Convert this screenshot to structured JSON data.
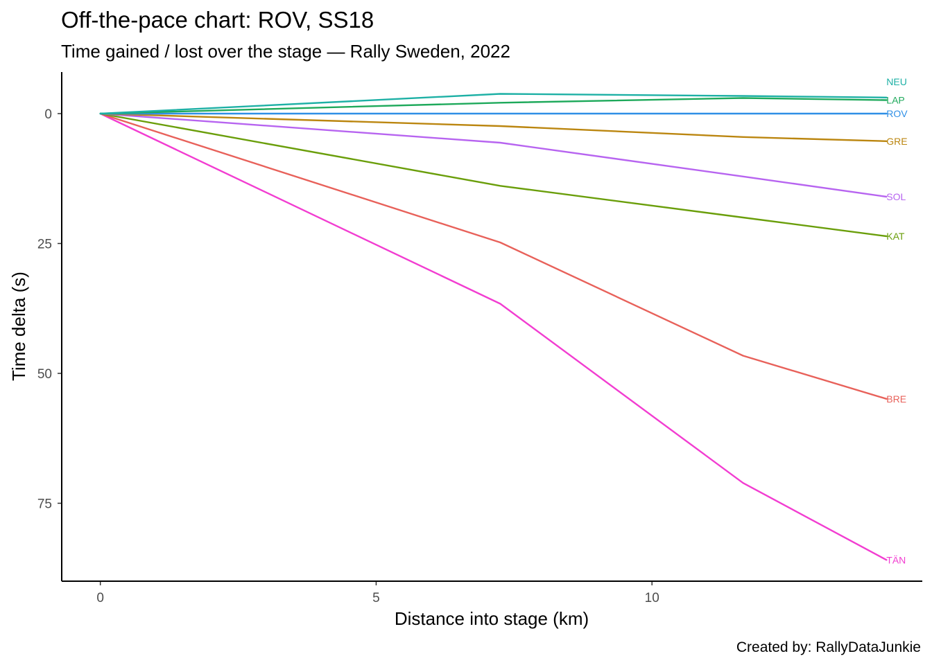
{
  "chart_data": {
    "type": "line",
    "title": "Off-the-pace chart: ROV, SS18",
    "subtitle": "Time gained / lost over the stage — Rally Sweden, 2022",
    "xlabel": "Distance into stage (km)",
    "ylabel": "Time delta (s)",
    "caption": "Created by: RallyDataJunkie",
    "y_reversed": true,
    "xlim": [
      -0.7,
      14.9
    ],
    "ylim": [
      -8,
      90
    ],
    "x_ticks": [
      0,
      5,
      10
    ],
    "x_tick_labels": [
      "0",
      "5",
      "10"
    ],
    "y_ticks": [
      0,
      25,
      50,
      75
    ],
    "y_tick_labels": [
      "0",
      "25",
      "50",
      "75"
    ],
    "x": [
      0,
      7.25,
      11.65,
      14.25
    ],
    "grid": false,
    "legend": "none",
    "series": [
      {
        "name": "NEU",
        "color": "#1db0a5",
        "values": [
          0,
          -3.8,
          -3.4,
          -3.1
        ]
      },
      {
        "name": "LAP",
        "color": "#1ea95b",
        "values": [
          0,
          -2.1,
          -3.0,
          -2.6
        ]
      },
      {
        "name": "ROV",
        "color": "#2e8fe6",
        "values": [
          0,
          0,
          0,
          0
        ]
      },
      {
        "name": "GRE",
        "color": "#bb8610",
        "values": [
          0,
          2.4,
          4.5,
          5.3
        ]
      },
      {
        "name": "SOL",
        "color": "#b764f0",
        "values": [
          0,
          5.6,
          12.1,
          16.0
        ]
      },
      {
        "name": "KAT",
        "color": "#6a9e0a",
        "values": [
          0,
          13.9,
          20.0,
          23.6
        ]
      },
      {
        "name": "BRE",
        "color": "#e8615a",
        "values": [
          0,
          24.8,
          46.6,
          54.9
        ]
      },
      {
        "name": "TÄN",
        "color": "#f23dd1",
        "values": [
          0,
          36.6,
          71.1,
          85.9
        ]
      }
    ]
  }
}
